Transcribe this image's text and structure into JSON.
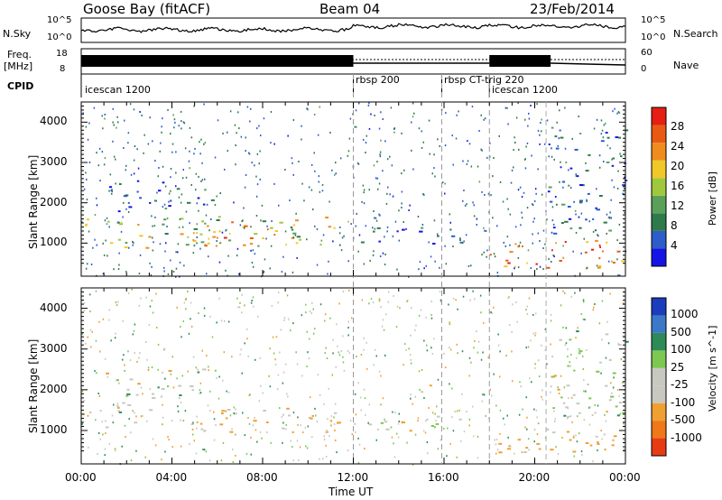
{
  "header": {
    "title_left": "Goose Bay (fitACF)",
    "title_center": "Beam 04",
    "title_right": "23/Feb/2014"
  },
  "strip": {
    "nsky_label": "N.Sky",
    "nsky_ticks": [
      "10^5",
      "10^0"
    ],
    "nsearch_label": "N.Search",
    "nsearch_ticks": [
      "10^5",
      "10^0"
    ],
    "freq_label": "Freq.",
    "freq_unit": "[MHz]",
    "freq_ticks": [
      "18",
      "8"
    ],
    "nave_label": "Nave",
    "nave_ticks": [
      "60",
      "0"
    ],
    "cpid_label": "CPID",
    "cpid_modes": [
      {
        "name": "icescan 1200",
        "start_hour": 0
      },
      {
        "name": "rbsp 200",
        "start_hour": 12
      },
      {
        "name": "rbsp CT-trig 220",
        "start_hour": 15.9
      },
      {
        "name": "icescan 1200",
        "start_hour": 18
      }
    ]
  },
  "axes": {
    "xlabel": "Time UT",
    "xticks": [
      "00:00",
      "04:00",
      "08:00",
      "12:00",
      "16:00",
      "20:00",
      "00:00"
    ],
    "ylabel": "Slant Range [km]",
    "yticks": [
      "1000",
      "2000",
      "3000",
      "4000"
    ]
  },
  "power_colorbar": {
    "label": "Power [dB]",
    "ticks": [
      "4",
      "8",
      "12",
      "16",
      "20",
      "24",
      "28"
    ],
    "colors": [
      "#1414e6",
      "#2d5dc8",
      "#2f7a4a",
      "#5aa05a",
      "#a0c83c",
      "#f0c828",
      "#f08c1e",
      "#e85a14",
      "#e61e14"
    ]
  },
  "velocity_colorbar": {
    "label": "Velocity [m s^-1]",
    "ticks": [
      "1000",
      "500",
      "100",
      "25",
      "-25",
      "-100",
      "-500",
      "-1000"
    ],
    "colors": [
      "#1c3cbe",
      "#3c78c8",
      "#2e8b57",
      "#7cc850",
      "#c8c8c0",
      "#c8c8c0",
      "#f0a030",
      "#f07818",
      "#e63c14"
    ]
  },
  "chart_data": [
    {
      "type": "heatmap",
      "title": "",
      "xlabel": "Time UT",
      "ylabel": "Slant Range [km]",
      "xlim_hours": [
        0,
        24
      ],
      "ylim": [
        180,
        4500
      ],
      "quantity": "Power [dB]",
      "clim": [
        0,
        32
      ],
      "regions": [
        {
          "t": [
            1,
            12
          ],
          "r": [
            900,
            1700
          ],
          "v": 16
        },
        {
          "t": [
            4.8,
            9.5
          ],
          "r": [
            950,
            1600
          ],
          "v": 22
        },
        {
          "t": [
            0,
            2
          ],
          "r": [
            1100,
            1700
          ],
          "v": 14
        },
        {
          "t": [
            1,
            6
          ],
          "r": [
            1800,
            2600
          ],
          "v": 6
        },
        {
          "t": [
            12,
            17
          ],
          "r": [
            1000,
            1400
          ],
          "v": 5
        },
        {
          "t": [
            18,
            24
          ],
          "r": [
            400,
            1100
          ],
          "v": 24
        },
        {
          "t": [
            20.5,
            24
          ],
          "r": [
            1200,
            4000
          ],
          "v": 7
        }
      ]
    },
    {
      "type": "heatmap",
      "title": "",
      "xlabel": "Time UT",
      "ylabel": "Slant Range [km]",
      "xlim_hours": [
        0,
        24
      ],
      "ylim": [
        180,
        4500
      ],
      "quantity": "Velocity [m s^-1]",
      "clim": [
        -1000,
        1000
      ],
      "regions": [
        {
          "t": [
            4.8,
            12
          ],
          "r": [
            950,
            1600
          ],
          "v": -120
        },
        {
          "t": [
            0,
            3
          ],
          "r": [
            1100,
            1700
          ],
          "v": 0
        },
        {
          "t": [
            1,
            6
          ],
          "r": [
            1800,
            2600
          ],
          "v": 0
        },
        {
          "t": [
            12,
            17
          ],
          "r": [
            1000,
            1400
          ],
          "v": 0
        },
        {
          "t": [
            18,
            24
          ],
          "r": [
            400,
            1100
          ],
          "v": -200
        },
        {
          "t": [
            20.5,
            24
          ],
          "r": [
            1300,
            3500
          ],
          "v": 0
        }
      ]
    }
  ]
}
